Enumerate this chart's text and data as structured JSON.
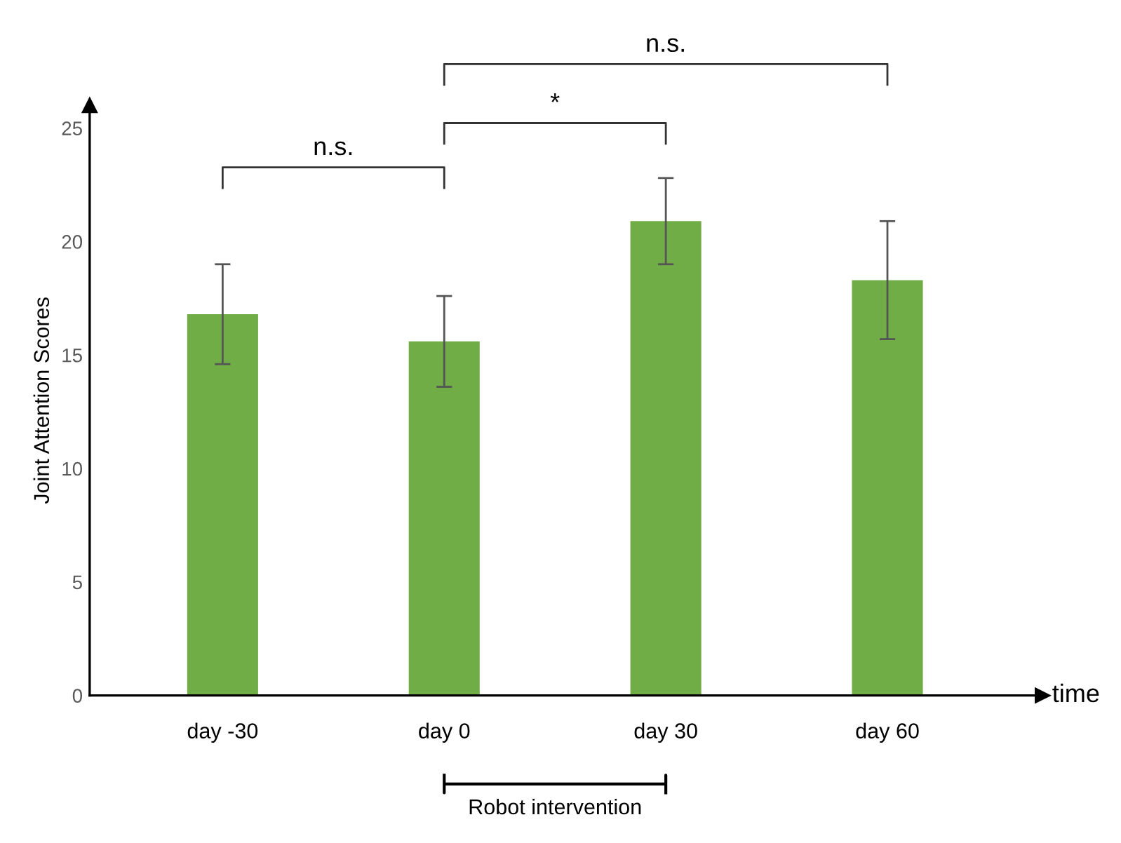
{
  "chart_data": {
    "type": "bar",
    "ylabel": "Joint Attention Scores",
    "xlabel": "time",
    "categories": [
      "day -30",
      "day 0",
      "day 30",
      "day 60"
    ],
    "values": [
      16.8,
      15.6,
      20.9,
      18.3
    ],
    "errors": [
      2.2,
      2.0,
      1.9,
      2.6
    ],
    "color": "#70ad47",
    "ylim": [
      0,
      26
    ],
    "yticks": [
      0,
      5,
      10,
      15,
      20,
      25
    ],
    "grid": false,
    "annotations": [
      "n.s.",
      "*",
      "n.s.",
      "Robot intervention"
    ]
  }
}
